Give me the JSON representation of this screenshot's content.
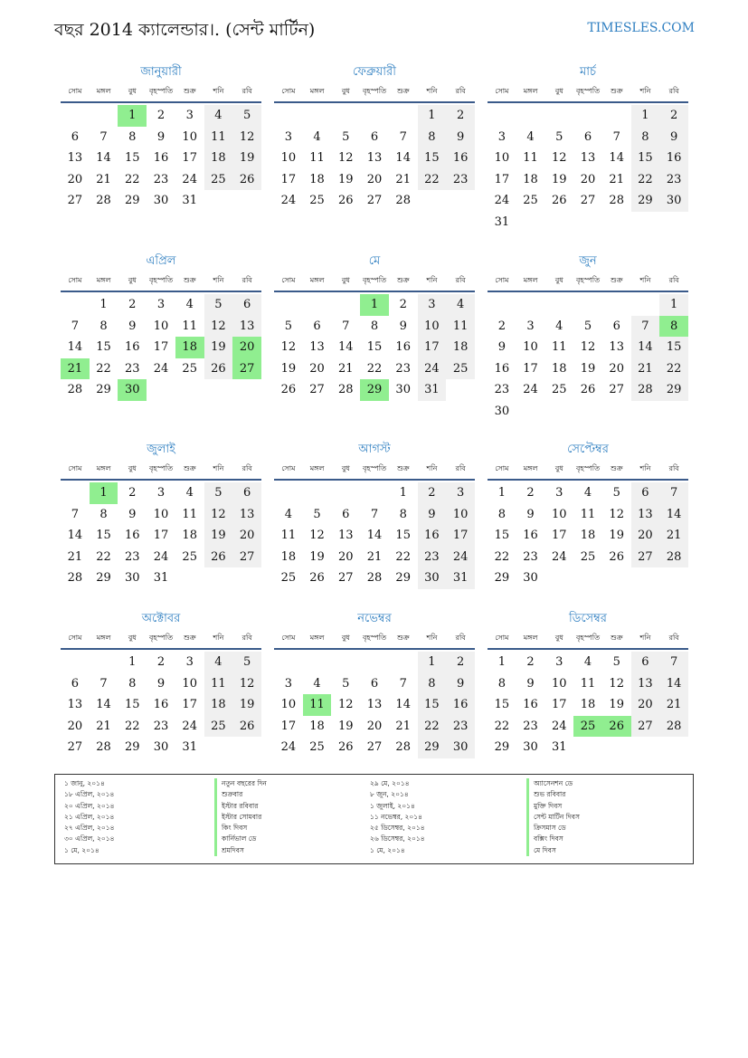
{
  "header": {
    "title": "বছর 2014 ক্যালেন্ডার।. (সেন্ট মার্টিন)",
    "brand": "TIMESLES.COM"
  },
  "weekdays": [
    "সোম",
    "মঙ্গল",
    "বুধ",
    "বৃহস্পতি",
    "শুক্র",
    "শনি",
    "রবি"
  ],
  "colors": {
    "accent": "#2f7fc1",
    "holiday": "#90ee90",
    "weekend": "#f0f0f0",
    "rule": "#3a5a8a"
  },
  "months": [
    {
      "name": "জানুয়ারী",
      "start_weekday": 2,
      "days": 31,
      "holidays": [
        1
      ]
    },
    {
      "name": "ফেব্রুয়ারী",
      "start_weekday": 5,
      "days": 28,
      "holidays": []
    },
    {
      "name": "মার্চ",
      "start_weekday": 5,
      "days": 31,
      "holidays": []
    },
    {
      "name": "এপ্রিল",
      "start_weekday": 1,
      "days": 30,
      "holidays": [
        18,
        20,
        21,
        27,
        30
      ]
    },
    {
      "name": "মে",
      "start_weekday": 3,
      "days": 31,
      "holidays": [
        1,
        29
      ]
    },
    {
      "name": "জুন",
      "start_weekday": 6,
      "days": 30,
      "holidays": [
        8
      ]
    },
    {
      "name": "জুলাই",
      "start_weekday": 1,
      "days": 31,
      "holidays": [
        1
      ]
    },
    {
      "name": "আগস্ট",
      "start_weekday": 4,
      "days": 31,
      "holidays": []
    },
    {
      "name": "সেপ্টেম্বর",
      "start_weekday": 0,
      "days": 30,
      "holidays": []
    },
    {
      "name": "অক্টোবর",
      "start_weekday": 2,
      "days": 31,
      "holidays": []
    },
    {
      "name": "নভেম্বর",
      "start_weekday": 5,
      "days": 30,
      "holidays": [
        11
      ]
    },
    {
      "name": "ডিসেম্বর",
      "start_weekday": 0,
      "days": 31,
      "holidays": [
        25,
        26
      ]
    }
  ],
  "holiday_list": {
    "left": [
      {
        "date": "১ জানু, ২০১৪",
        "name": "নতুন বছরের দিন"
      },
      {
        "date": "১৮ এপ্রিল, ২০১৪",
        "name": "শুক্রবার"
      },
      {
        "date": "২০ এপ্রিল, ২০১৪",
        "name": "ইস্টার রবিবার"
      },
      {
        "date": "২১ এপ্রিল, ২০১৪",
        "name": "ইস্টার সোমবার"
      },
      {
        "date": "২৭ এপ্রিল, ২০১৪",
        "name": "কিং দিবস"
      },
      {
        "date": "৩০ এপ্রিল, ২০১৪",
        "name": "কার্নিভাল ডে"
      },
      {
        "date": "১ মে, ২০১৪",
        "name": "শ্রমদিবস"
      }
    ],
    "right": [
      {
        "date": "২৯ মে, ২০১৪",
        "name": "অ্যাসেনশন ডে"
      },
      {
        "date": "৮ জুন, ২০১৪",
        "name": "শুভ রবিবার"
      },
      {
        "date": "১ জুলাই, ২০১৪",
        "name": "মুক্তি দিবস"
      },
      {
        "date": "১১ নভেম্বর, ২০১৪",
        "name": "সেন্ট মার্টিন দিবস"
      },
      {
        "date": "২৫ ডিসেম্বর, ২০১৪",
        "name": "ক্রিসমাস ডে"
      },
      {
        "date": "২৬ ডিসেম্বর, ২০১৪",
        "name": "বক্সিং দিবস"
      },
      {
        "date": "১ মে, ২০১৪",
        "name": "মে দিবস"
      }
    ]
  }
}
